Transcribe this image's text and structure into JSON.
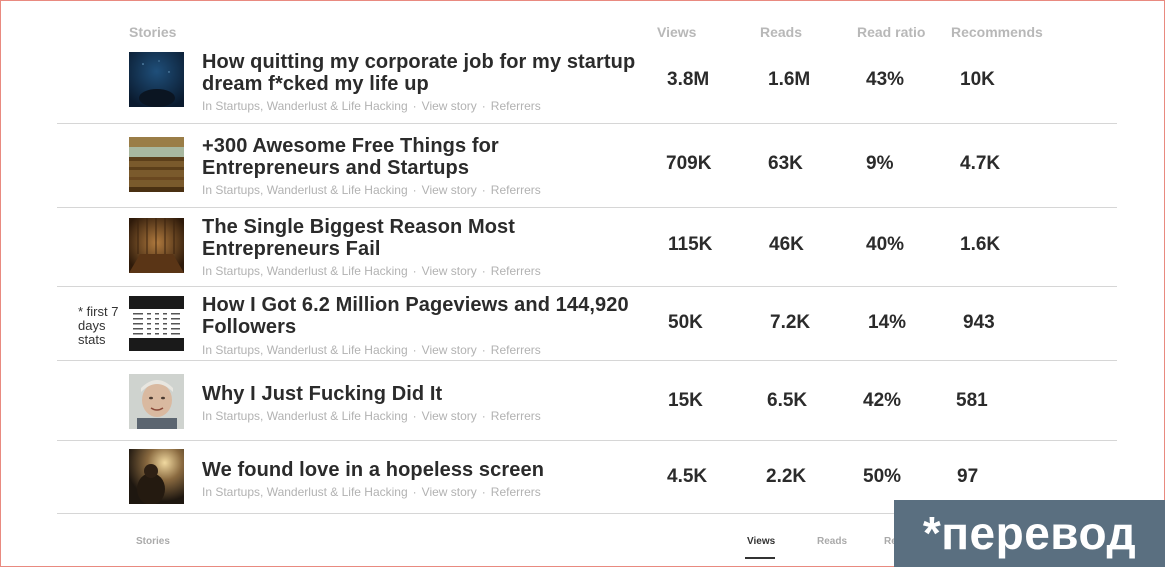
{
  "header": {
    "stories": "Stories",
    "views": "Views",
    "reads": "Reads",
    "read_ratio": "Read ratio",
    "recommends": "Recommends"
  },
  "meta_labels": {
    "publication": "In Startups, Wanderlust & Life Hacking",
    "separator": "·",
    "view_story": "View story",
    "referrers": "Referrers"
  },
  "stories": [
    {
      "title": "How quitting my corporate job for my startup dream f*cked my life up",
      "views": "3.8M",
      "reads": "1.6M",
      "read_ratio": "43%",
      "recommends": "10K",
      "thumb_icon": "underwater-photo-icon"
    },
    {
      "title": "+300 Awesome Free Things for Entrepreneurs and Startups",
      "views": "709K",
      "reads": "63K",
      "read_ratio": "9%",
      "recommends": "4.7K",
      "thumb_icon": "wooden-board-photo-icon"
    },
    {
      "title": "The Single Biggest Reason Most Entrepreneurs Fail",
      "views": "115K",
      "reads": "46K",
      "read_ratio": "40%",
      "recommends": "1.6K",
      "thumb_icon": "wooden-room-photo-icon"
    },
    {
      "title": "How I Got 6.2 Million Pageviews and 144,920 Followers",
      "views": "50K",
      "reads": "7.2K",
      "read_ratio": "14%",
      "recommends": "943",
      "thumb_icon": "stats-screenshot-icon",
      "note": "* first 7 days stats"
    },
    {
      "title": "Why I Just Fucking Did It",
      "views": "15K",
      "reads": "6.5K",
      "read_ratio": "42%",
      "recommends": "581",
      "thumb_icon": "portrait-photo-icon"
    },
    {
      "title": "We found love in a hopeless screen",
      "views": "4.5K",
      "reads": "2.2K",
      "read_ratio": "50%",
      "recommends": "97",
      "thumb_icon": "sunset-photo-icon"
    }
  ],
  "footer": {
    "stories": "Stories",
    "views": "Views",
    "reads": "Reads",
    "read_ratio": "Read ratio"
  },
  "badge": {
    "text": "*перевод"
  }
}
